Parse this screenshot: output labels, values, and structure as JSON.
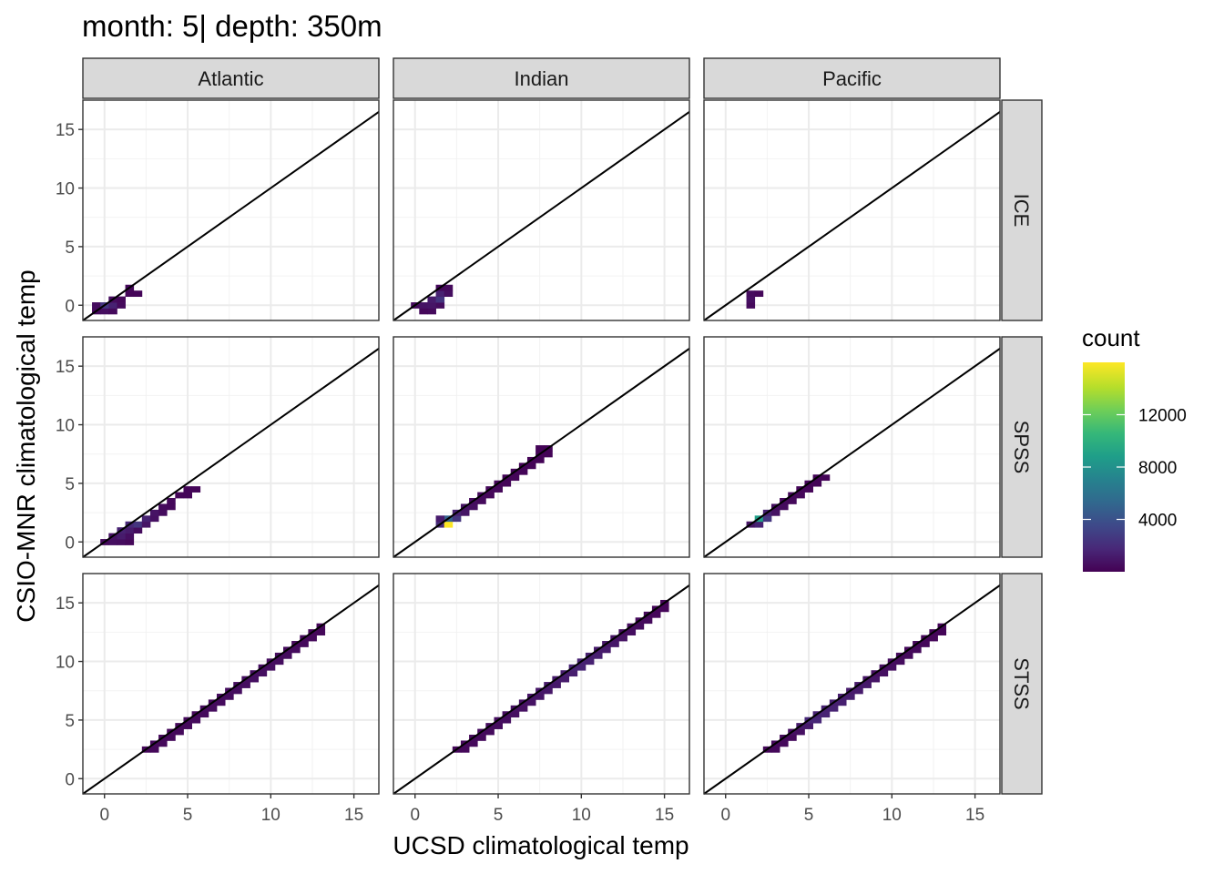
{
  "chart_data": {
    "type": "heatmap",
    "subtype": "facetted 2d-bin",
    "title": "month: 5| depth: 350m",
    "xlabel": "UCSD climatological temp",
    "ylabel": "CSIO-MNR climatological temp",
    "columns": [
      "Atlantic",
      "Indian",
      "Pacific"
    ],
    "rows": [
      "ICE",
      "SPSS",
      "STSS"
    ],
    "xlim": [
      -1.3,
      16.5
    ],
    "ylim": [
      -1.3,
      17.5
    ],
    "x_ticks": [
      0,
      5,
      10,
      15
    ],
    "y_ticks": [
      0,
      5,
      10,
      15
    ],
    "x_tick_labels": [
      "0",
      "5",
      "10",
      "15"
    ],
    "y_tick_labels": [
      "0",
      "5",
      "10",
      "15"
    ],
    "grid": true,
    "reference_line": "y = x",
    "legend": {
      "title": "count",
      "position": "right",
      "colormap": "viridis",
      "min": 0,
      "max": 16000,
      "ticks": [
        4000,
        8000,
        12000
      ],
      "tick_labels": [
        "4000",
        "8000",
        "12000"
      ]
    },
    "colors": [
      "#440154",
      "#482878",
      "#3e4989",
      "#31688e",
      "#26828e",
      "#1f9e89",
      "#35b779",
      "#6ece58",
      "#b5de2b",
      "#fde725"
    ],
    "bin_width": 0.5,
    "panels": [
      {
        "row": "ICE",
        "col": "Atlantic",
        "cells": [
          [
            -0.5,
            -0.5,
            400
          ],
          [
            0,
            -0.5,
            600
          ],
          [
            0.5,
            -0.5,
            400
          ],
          [
            -0.5,
            0,
            500
          ],
          [
            0,
            0,
            2500
          ],
          [
            0.5,
            0,
            1500
          ],
          [
            1,
            0,
            400
          ],
          [
            0.5,
            0.5,
            500
          ],
          [
            1,
            0.5,
            300
          ],
          [
            1.5,
            1,
            200
          ],
          [
            2,
            1,
            200
          ],
          [
            1.5,
            1.5,
            300
          ]
        ]
      },
      {
        "row": "ICE",
        "col": "Indian",
        "cells": [
          [
            0.5,
            -0.5,
            300
          ],
          [
            1,
            -0.5,
            400
          ],
          [
            0,
            0,
            400
          ],
          [
            0.5,
            0,
            800
          ],
          [
            1,
            0,
            900
          ],
          [
            1.5,
            0,
            500
          ],
          [
            1,
            0.5,
            1200
          ],
          [
            1.5,
            0.5,
            2500
          ],
          [
            1.5,
            1,
            1500
          ],
          [
            2,
            1,
            600
          ],
          [
            1.5,
            1.5,
            300
          ],
          [
            2,
            1.5,
            400
          ]
        ]
      },
      {
        "row": "ICE",
        "col": "Pacific",
        "cells": [
          [
            1.5,
            0,
            400
          ],
          [
            1.5,
            0.5,
            700
          ],
          [
            1.5,
            1,
            500
          ],
          [
            2,
            1,
            300
          ]
        ]
      },
      {
        "row": "SPSS",
        "col": "Atlantic",
        "cells": [
          [
            0,
            0,
            400
          ],
          [
            0.5,
            0,
            600
          ],
          [
            1,
            0,
            500
          ],
          [
            1.5,
            0,
            300
          ],
          [
            0.5,
            0.5,
            800
          ],
          [
            1,
            0.5,
            1200
          ],
          [
            1.5,
            0.5,
            600
          ],
          [
            1,
            1,
            1500
          ],
          [
            1.5,
            1,
            1200
          ],
          [
            2,
            1,
            500
          ],
          [
            1.5,
            1.5,
            1800
          ],
          [
            2,
            1.5,
            2500
          ],
          [
            2.5,
            1.5,
            900
          ],
          [
            2.5,
            2,
            1500
          ],
          [
            3,
            2,
            700
          ],
          [
            3,
            2.5,
            800
          ],
          [
            3.5,
            2.5,
            500
          ],
          [
            3.5,
            3,
            400
          ],
          [
            4,
            3,
            300
          ],
          [
            4,
            3.5,
            300
          ],
          [
            4.5,
            4,
            200
          ],
          [
            5,
            4,
            200
          ],
          [
            5,
            4.5,
            200
          ],
          [
            5.5,
            4.5,
            200
          ]
        ]
      },
      {
        "row": "SPSS",
        "col": "Indian",
        "cells": [
          [
            1.5,
            1.5,
            2000
          ],
          [
            2,
            1.5,
            16000
          ],
          [
            2,
            2,
            5000
          ],
          [
            2.5,
            2,
            2500
          ],
          [
            1.5,
            2,
            1200
          ],
          [
            2.5,
            2.5,
            1500
          ],
          [
            3,
            2.5,
            900
          ],
          [
            3,
            3,
            800
          ],
          [
            3.5,
            3,
            600
          ],
          [
            3.5,
            3.5,
            500
          ],
          [
            4,
            3.5,
            400
          ],
          [
            4,
            4,
            400
          ],
          [
            4.5,
            4,
            300
          ],
          [
            4.5,
            4.5,
            300
          ],
          [
            5,
            4.5,
            300
          ],
          [
            5,
            5,
            250
          ],
          [
            5.5,
            5,
            250
          ],
          [
            5.5,
            5.5,
            200
          ],
          [
            6,
            5.5,
            200
          ],
          [
            6,
            6,
            200
          ],
          [
            6.5,
            6,
            200
          ],
          [
            6.5,
            6.5,
            150
          ],
          [
            7,
            6.5,
            150
          ],
          [
            7,
            7,
            150
          ],
          [
            7.5,
            7,
            150
          ],
          [
            7.5,
            7.5,
            150
          ],
          [
            8,
            7.5,
            150
          ],
          [
            7.5,
            8,
            150
          ],
          [
            8,
            8,
            150
          ]
        ]
      },
      {
        "row": "SPSS",
        "col": "Pacific",
        "cells": [
          [
            1.5,
            1.5,
            900
          ],
          [
            2,
            1.5,
            1500
          ],
          [
            2,
            2,
            9000
          ],
          [
            2.5,
            2,
            2500
          ],
          [
            2.5,
            2.5,
            1500
          ],
          [
            3,
            2.5,
            800
          ],
          [
            3,
            3,
            600
          ],
          [
            3.5,
            3,
            500
          ],
          [
            3.5,
            3.5,
            400
          ],
          [
            4,
            3.5,
            350
          ],
          [
            4,
            4,
            300
          ],
          [
            4.5,
            4,
            300
          ],
          [
            4.5,
            4.5,
            250
          ],
          [
            5,
            4.5,
            250
          ],
          [
            5,
            5,
            200
          ],
          [
            5.5,
            5,
            200
          ],
          [
            5.5,
            5.5,
            200
          ],
          [
            6,
            5.5,
            150
          ]
        ]
      },
      {
        "row": "STSS",
        "col": "Atlantic",
        "cells": [
          [
            2.5,
            2.5,
            300
          ],
          [
            3,
            2.5,
            300
          ],
          [
            3,
            3,
            350
          ],
          [
            3.5,
            3,
            350
          ],
          [
            3.5,
            3.5,
            350
          ],
          [
            4,
            3.5,
            350
          ],
          [
            4,
            4,
            350
          ],
          [
            4.5,
            4,
            350
          ],
          [
            4.5,
            4.5,
            350
          ],
          [
            5,
            4.5,
            350
          ],
          [
            5,
            5,
            400
          ],
          [
            5.5,
            5,
            400
          ],
          [
            5.5,
            5.5,
            400
          ],
          [
            6,
            5.5,
            400
          ],
          [
            6,
            6,
            450
          ],
          [
            6.5,
            6,
            450
          ],
          [
            6.5,
            6.5,
            450
          ],
          [
            7,
            6.5,
            450
          ],
          [
            7,
            7,
            500
          ],
          [
            7.5,
            7,
            500
          ],
          [
            7.5,
            7.5,
            550
          ],
          [
            8,
            7.5,
            550
          ],
          [
            8,
            8,
            600
          ],
          [
            8.5,
            8,
            600
          ],
          [
            8.5,
            8.5,
            650
          ],
          [
            9,
            8.5,
            650
          ],
          [
            9,
            9,
            650
          ],
          [
            9.5,
            9,
            650
          ],
          [
            9.5,
            9.5,
            600
          ],
          [
            10,
            9.5,
            600
          ],
          [
            10,
            10,
            550
          ],
          [
            10.5,
            10,
            550
          ],
          [
            10.5,
            10.5,
            500
          ],
          [
            11,
            10.5,
            500
          ],
          [
            11,
            11,
            450
          ],
          [
            11.5,
            11,
            450
          ],
          [
            11.5,
            11.5,
            400
          ],
          [
            12,
            11.5,
            400
          ],
          [
            12,
            12,
            350
          ],
          [
            12.5,
            12,
            350
          ],
          [
            12.5,
            12.5,
            300
          ],
          [
            13,
            12.5,
            300
          ],
          [
            13,
            13,
            250
          ]
        ]
      },
      {
        "row": "STSS",
        "col": "Indian",
        "cells": [
          [
            2.5,
            2.5,
            300
          ],
          [
            3,
            2.5,
            300
          ],
          [
            3,
            3,
            350
          ],
          [
            3.5,
            3,
            350
          ],
          [
            3.5,
            3.5,
            400
          ],
          [
            4,
            3.5,
            400
          ],
          [
            4,
            4,
            450
          ],
          [
            4.5,
            4,
            450
          ],
          [
            4.5,
            4.5,
            500
          ],
          [
            5,
            4.5,
            500
          ],
          [
            5,
            5,
            550
          ],
          [
            5.5,
            5,
            550
          ],
          [
            5.5,
            5.5,
            600
          ],
          [
            6,
            5.5,
            600
          ],
          [
            6,
            6,
            700
          ],
          [
            6.5,
            6,
            700
          ],
          [
            6.5,
            6.5,
            800
          ],
          [
            7,
            6.5,
            800
          ],
          [
            7,
            7,
            900
          ],
          [
            7.5,
            7,
            900
          ],
          [
            7.5,
            7.5,
            1000
          ],
          [
            8,
            7.5,
            1000
          ],
          [
            8,
            8,
            1100
          ],
          [
            8.5,
            8,
            1100
          ],
          [
            8.5,
            8.5,
            1200
          ],
          [
            9,
            8.5,
            1200
          ],
          [
            9,
            9,
            1300
          ],
          [
            9.5,
            9,
            1300
          ],
          [
            9.5,
            9.5,
            1600
          ],
          [
            10,
            9.5,
            1600
          ],
          [
            10,
            10,
            1500
          ],
          [
            10.5,
            10,
            1500
          ],
          [
            10.5,
            10.5,
            1400
          ],
          [
            11,
            10.5,
            1400
          ],
          [
            11,
            11,
            1200
          ],
          [
            11.5,
            11,
            1200
          ],
          [
            11.5,
            11.5,
            1000
          ],
          [
            12,
            11.5,
            1000
          ],
          [
            12,
            12,
            800
          ],
          [
            12.5,
            12,
            800
          ],
          [
            12.5,
            12.5,
            600
          ],
          [
            13,
            12.5,
            600
          ],
          [
            13,
            13,
            500
          ],
          [
            13.5,
            13,
            500
          ],
          [
            13.5,
            13.5,
            400
          ],
          [
            14,
            13.5,
            400
          ],
          [
            14,
            14,
            300
          ],
          [
            14.5,
            14,
            300
          ],
          [
            14.5,
            14.5,
            250
          ],
          [
            15,
            14.5,
            250
          ],
          [
            15,
            15,
            200
          ]
        ]
      },
      {
        "row": "STSS",
        "col": "Pacific",
        "cells": [
          [
            2.5,
            2.5,
            300
          ],
          [
            3,
            2.5,
            300
          ],
          [
            3,
            3,
            350
          ],
          [
            3.5,
            3,
            350
          ],
          [
            3.5,
            3.5,
            400
          ],
          [
            4,
            3.5,
            400
          ],
          [
            4,
            4,
            700
          ],
          [
            4.5,
            4,
            700
          ],
          [
            4.5,
            4.5,
            1200
          ],
          [
            5,
            4.5,
            1200
          ],
          [
            5,
            5,
            1800
          ],
          [
            5.5,
            5,
            1800
          ],
          [
            5.5,
            5.5,
            1600
          ],
          [
            6,
            5.5,
            1600
          ],
          [
            6,
            6,
            1500
          ],
          [
            6.5,
            6,
            1500
          ],
          [
            6.5,
            6.5,
            1400
          ],
          [
            7,
            6.5,
            1400
          ],
          [
            7,
            7,
            1300
          ],
          [
            7.5,
            7,
            1300
          ],
          [
            7.5,
            7.5,
            1200
          ],
          [
            8,
            7.5,
            1200
          ],
          [
            8,
            8,
            1100
          ],
          [
            8.5,
            8,
            1100
          ],
          [
            8.5,
            8.5,
            900
          ],
          [
            9,
            8.5,
            900
          ],
          [
            9,
            9,
            700
          ],
          [
            9.5,
            9,
            700
          ],
          [
            9.5,
            9.5,
            600
          ],
          [
            10,
            9.5,
            600
          ],
          [
            10,
            10,
            500
          ],
          [
            10.5,
            10,
            500
          ],
          [
            10.5,
            10.5,
            400
          ],
          [
            11,
            10.5,
            400
          ],
          [
            11,
            11,
            350
          ],
          [
            11.5,
            11,
            350
          ],
          [
            11.5,
            11.5,
            300
          ],
          [
            12,
            11.5,
            300
          ],
          [
            12,
            12,
            250
          ],
          [
            12.5,
            12,
            250
          ],
          [
            12.5,
            12.5,
            200
          ],
          [
            13,
            12.5,
            200
          ],
          [
            13,
            13,
            200
          ]
        ]
      }
    ]
  }
}
